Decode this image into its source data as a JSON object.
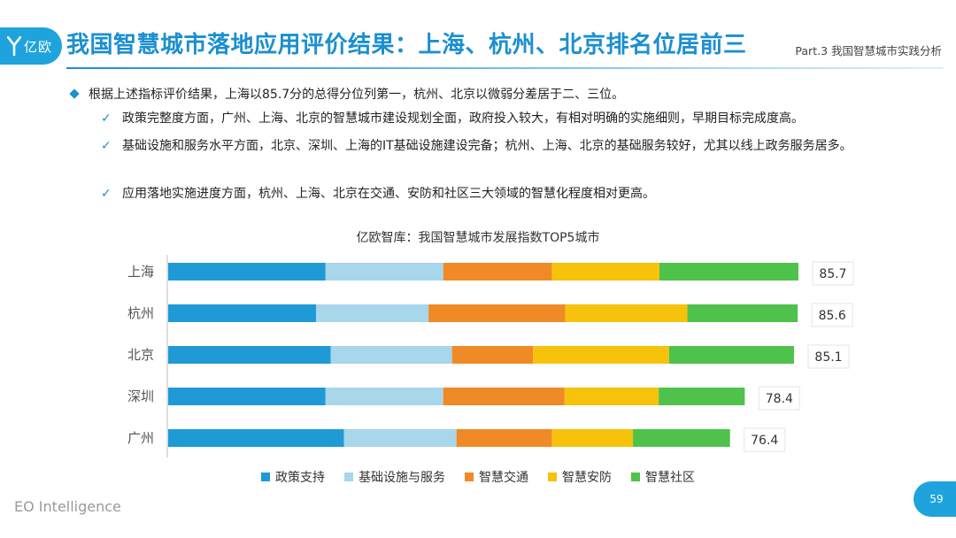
{
  "header": {
    "logo_text": "亿欧",
    "title": "我国智慧城市落地应用评价结果：上海、杭州、北京排名位居前三",
    "part_label": "Part.3 我国智慧城市实践分析"
  },
  "content": {
    "main_bullet": "根据上述指标评价结果，上海以85.7分的总得分位列第一，杭州、北京以微弱分差居于二、三位。",
    "sub_bullets": [
      "政策完整度方面，广州、上海、北京的智慧城市建设规划全面，政府投入较大，有相对明确的实施细则，早期目标完成度高。",
      "基础设施和服务水平方面，北京、深圳、上海的IT基础设施建设完备；杭州、上海、北京的基础服务较好，尤其以线上政务服务居多。",
      "应用落地实施进度方面，杭州、上海、北京在交通、安防和社区三大领域的智慧化程度相对更高。"
    ]
  },
  "chart_data": {
    "type": "bar",
    "orientation": "horizontal",
    "stacked": true,
    "title": "亿欧智库：我国智慧城市发展指数TOP5城市",
    "categories": [
      "上海",
      "杭州",
      "北京",
      "深圳",
      "广州"
    ],
    "series": [
      {
        "name": "政策支持",
        "color": "#1f9ad6",
        "values": [
          21.4,
          20.1,
          22.1,
          21.4,
          23.9
        ]
      },
      {
        "name": "基础设施与服务",
        "color": "#a8d6ea",
        "values": [
          16.0,
          15.3,
          16.5,
          16.0,
          15.3
        ]
      },
      {
        "name": "智慧交通",
        "color": "#f08a26",
        "values": [
          14.8,
          18.6,
          11.0,
          16.5,
          13.0
        ]
      },
      {
        "name": "智慧安防",
        "color": "#f7c20b",
        "values": [
          14.6,
          16.6,
          18.5,
          12.8,
          11.0
        ]
      },
      {
        "name": "智慧社区",
        "color": "#4fc24b",
        "values": [
          18.9,
          15.0,
          17.0,
          11.7,
          13.2
        ]
      }
    ],
    "totals": [
      "85.7",
      "85.6",
      "85.1",
      "78.4",
      "76.4"
    ],
    "legend_position": "bottom",
    "grid": false
  },
  "footer": {
    "brand": "EO Intelligence",
    "page_number": "59"
  }
}
